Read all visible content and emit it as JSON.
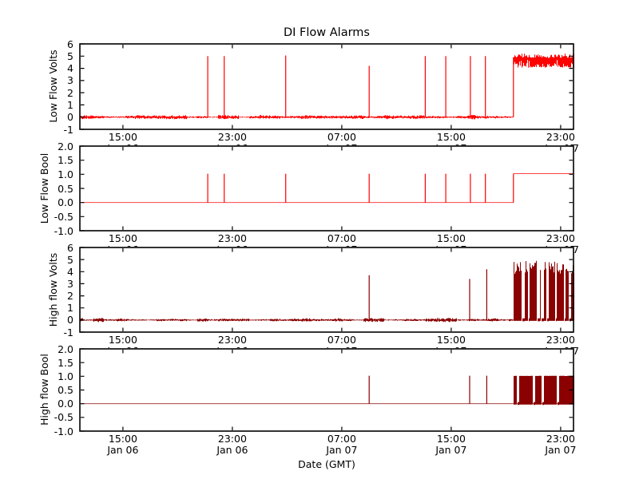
{
  "title": "DI Flow Alarms",
  "xlabel": "Date (GMT)",
  "x_axis": {
    "unit": "hours since Jan 06 00:00 GMT",
    "xlim": [
      11.85,
      47.94
    ],
    "ticks": [
      {
        "value": 15,
        "time": "15:00",
        "date": "Jan 06"
      },
      {
        "value": 23,
        "time": "23:00",
        "date": "Jan 06"
      },
      {
        "value": 31,
        "time": "07:00",
        "date": "Jan 07"
      },
      {
        "value": 39,
        "time": "15:00",
        "date": "Jan 07"
      },
      {
        "value": 47,
        "time": "23:00",
        "date": "Jan 07"
      }
    ],
    "clipped_date_tail": "7"
  },
  "chart_data": [
    {
      "type": "line",
      "name": "low-flow-volts",
      "ylabel": "Low Flow Volts",
      "color": "#ff0000",
      "ylim": [
        -1,
        6
      ],
      "yticks": [
        "6",
        "5",
        "4",
        "3",
        "2",
        "1",
        "0",
        "-1"
      ],
      "segments": [
        {
          "type": "noise",
          "t0": 11.85,
          "t1": 43.55,
          "mean": 0,
          "amp": 0.17
        },
        {
          "type": "spike",
          "t": 21.2,
          "v": 5.0
        },
        {
          "type": "spike",
          "t": 22.4,
          "v": 5.0
        },
        {
          "type": "spike",
          "t": 26.9,
          "v": 5.05
        },
        {
          "type": "spike",
          "t": 33.0,
          "v": 4.2
        },
        {
          "type": "spike",
          "t": 37.1,
          "v": 5.0
        },
        {
          "type": "spike",
          "t": 38.6,
          "v": 5.0
        },
        {
          "type": "spike",
          "t": 40.4,
          "v": 5.0
        },
        {
          "type": "spike",
          "t": 41.5,
          "v": 5.0
        },
        {
          "type": "vline",
          "t": 43.55,
          "v0": 0,
          "v1": 4.9
        },
        {
          "type": "noisyband",
          "t0": 43.55,
          "t1": 47.94,
          "lo": 3.9,
          "hi": 5.15
        }
      ]
    },
    {
      "type": "line",
      "name": "low-flow-bool",
      "ylabel": "Low Flow Bool",
      "color": "#ff0000",
      "ylim": [
        -1,
        2
      ],
      "yticks": [
        "2.0",
        "1.5",
        "1.0",
        "0.5",
        "0.0",
        "-0.5",
        "-1.0"
      ],
      "segments": [
        {
          "type": "flat",
          "t0": 11.85,
          "t1": 43.55,
          "v": 0
        },
        {
          "type": "spike",
          "t": 21.2,
          "v": 1.02
        },
        {
          "type": "spike",
          "t": 22.4,
          "v": 1.02
        },
        {
          "type": "spike",
          "t": 26.9,
          "v": 1.02
        },
        {
          "type": "spike",
          "t": 33.0,
          "v": 1.02
        },
        {
          "type": "spike",
          "t": 37.1,
          "v": 1.02
        },
        {
          "type": "spike",
          "t": 38.6,
          "v": 1.02
        },
        {
          "type": "spike",
          "t": 40.4,
          "v": 1.02
        },
        {
          "type": "spike",
          "t": 41.5,
          "v": 1.02
        },
        {
          "type": "vline",
          "t": 43.55,
          "v0": 0,
          "v1": 1.02
        },
        {
          "type": "flat",
          "t0": 43.55,
          "t1": 47.94,
          "v": 1.02
        }
      ]
    },
    {
      "type": "line",
      "name": "high-flow-volts",
      "ylabel": "High flow Volts",
      "color": "#8b0000",
      "ylim": [
        -1,
        6
      ],
      "yticks": [
        "6",
        "5",
        "4",
        "3",
        "2",
        "1",
        "0",
        "-1"
      ],
      "segments": [
        {
          "type": "noise",
          "t0": 11.85,
          "t1": 43.55,
          "mean": 0,
          "amp": 0.16
        },
        {
          "type": "spike",
          "t": 33.0,
          "v": 3.7
        },
        {
          "type": "spike",
          "t": 40.35,
          "v": 3.4
        },
        {
          "type": "spike",
          "t": 41.6,
          "v": 4.2
        },
        {
          "type": "chaos",
          "t0": 43.55,
          "t1": 47.94,
          "lo": 0,
          "hi": 4.9,
          "jitter": 0.22
        }
      ]
    },
    {
      "type": "line",
      "name": "high-flow-bool",
      "ylabel": "High flow Bool",
      "color": "#8b0000",
      "ylim": [
        -1,
        2
      ],
      "yticks": [
        "2.0",
        "1.5",
        "1.0",
        "0.5",
        "0.0",
        "-0.5",
        "-1.0"
      ],
      "segments": [
        {
          "type": "flat",
          "t0": 11.85,
          "t1": 43.55,
          "v": 0
        },
        {
          "type": "spike",
          "t": 33.0,
          "v": 1.02
        },
        {
          "type": "spike",
          "t": 40.35,
          "v": 1.02
        },
        {
          "type": "spike",
          "t": 41.6,
          "v": 1.02
        },
        {
          "type": "chaos",
          "t0": 43.55,
          "t1": 47.94,
          "lo": 0,
          "hi": 1.02,
          "jitter": 0.01
        },
        {
          "type": "flat",
          "t0": 43.55,
          "t1": 47.94,
          "v": 0
        }
      ]
    }
  ]
}
